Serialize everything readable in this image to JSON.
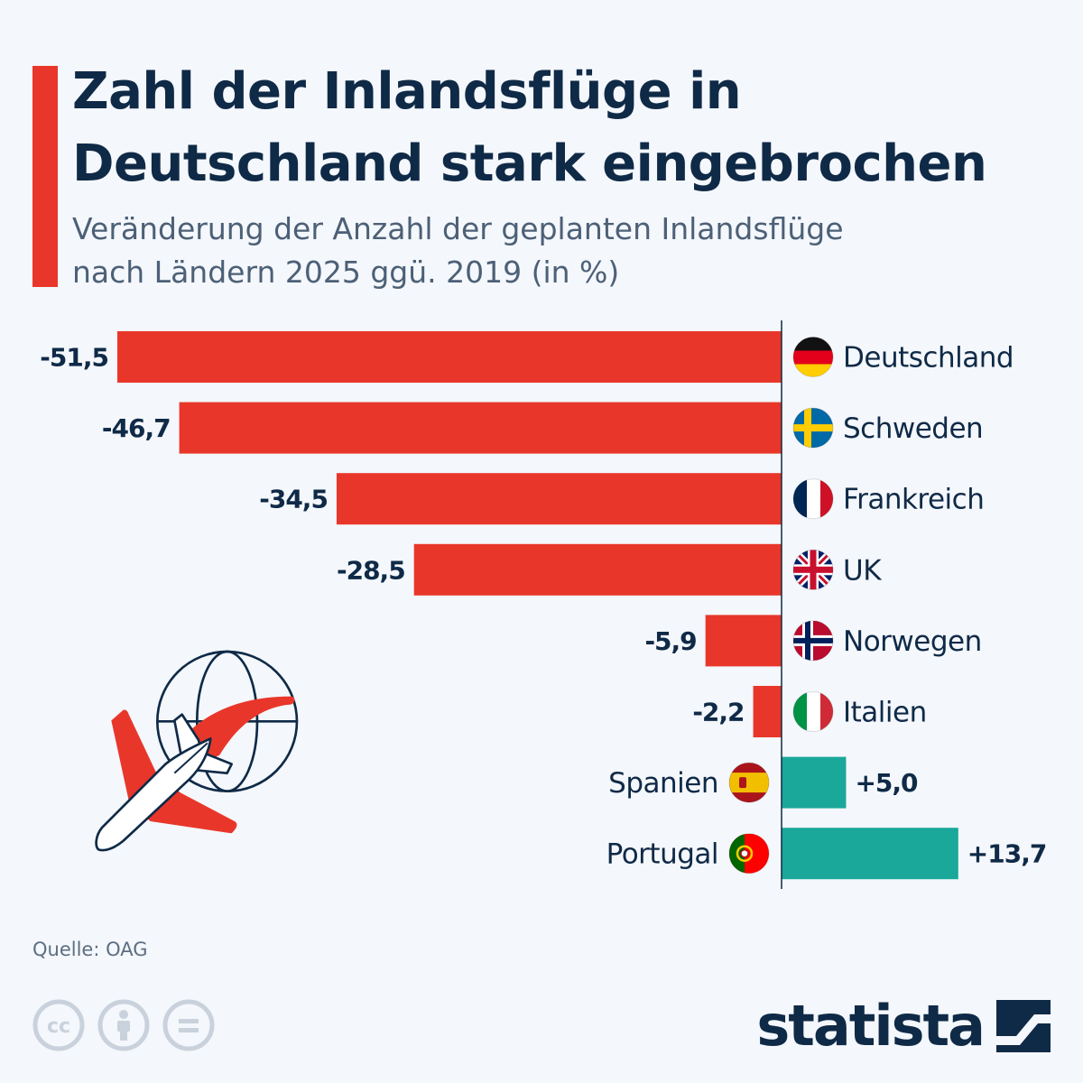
{
  "header": {
    "title_line1": "Zahl der Inlandsflüge in",
    "title_line2": "Deutschland stark eingebrochen",
    "subtitle_line1": "Veränderung der Anzahl der geplanten Inlandsflüge",
    "subtitle_line2": "nach Ländern 2025 ggü. 2019 (in %)"
  },
  "chart_data": {
    "type": "bar",
    "orientation": "horizontal",
    "categories": [
      "Deutschland",
      "Schweden",
      "Frankreich",
      "UK",
      "Norwegen",
      "Italien",
      "Spanien",
      "Portugal"
    ],
    "values": [
      -51.5,
      -46.7,
      -34.5,
      -28.5,
      -5.9,
      -2.2,
      5.0,
      13.7
    ],
    "value_labels": [
      "-51,5",
      "-46,7",
      "-34,5",
      "-28,5",
      "-5,9",
      "-2,2",
      "+5,0",
      "+13,7"
    ],
    "flag_icons": [
      "flag-germany",
      "flag-sweden",
      "flag-france",
      "flag-uk",
      "flag-norway",
      "flag-italy",
      "flag-spain",
      "flag-portugal"
    ],
    "negative_color": "#e8372a",
    "positive_color": "#1aa89a",
    "xlim": [
      -51.5,
      13.7
    ],
    "grid": false,
    "legend": "none"
  },
  "footer": {
    "source": "Quelle: OAG",
    "brand": "statista",
    "license_icons": [
      "cc-icon",
      "attribution-icon",
      "no-derivatives-icon"
    ]
  },
  "colors": {
    "title": "#0f2a47",
    "background": "#f4f7fb"
  }
}
